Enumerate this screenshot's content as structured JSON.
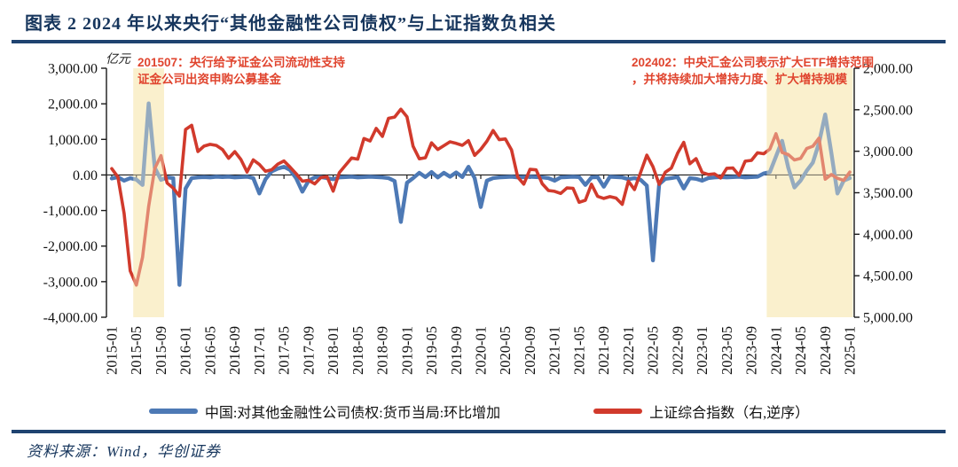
{
  "figure": {
    "title": "图表 2  2024 年以来央行“其他金融性公司债权”与上证指数负相关",
    "source": "资料来源：Wind，华创证券"
  },
  "chart_data": {
    "type": "line",
    "unit_label": "亿元",
    "x_start": "2015-01",
    "x_end": "2025-01",
    "x_tick_labels": [
      "2015-01",
      "2015-05",
      "2015-09",
      "2016-01",
      "2016-05",
      "2016-09",
      "2017-01",
      "2017-05",
      "2017-09",
      "2018-01",
      "2018-05",
      "2018-09",
      "2019-01",
      "2019-05",
      "2019-09",
      "2020-01",
      "2020-05",
      "2020-09",
      "2021-01",
      "2021-05",
      "2021-09",
      "2022-01",
      "2022-05",
      "2022-09",
      "2023-01",
      "2023-05",
      "2023-09",
      "2024-01",
      "2024-05",
      "2024-09",
      "2025-01"
    ],
    "left_axis": {
      "min": -4000,
      "max": 3000,
      "tick_step": 1000
    },
    "right_axis": {
      "min": 2000,
      "max": 5000,
      "tick_step": 500,
      "inverted": true,
      "note": "right axis shown reversed: 2,000.00 at top, 5,000.00 at bottom"
    },
    "grid": "zero-line only",
    "legend_position": "bottom-center",
    "band_color": "#FAF0CE",
    "highlight_bands": [
      {
        "start": "2015-05",
        "end": "2015-09"
      },
      {
        "start": "2023-12",
        "end": "2025-01"
      }
    ],
    "annotations": [
      {
        "line1": "201507：央行给予证金公司流动性支持",
        "line2": "证金公司出资申购公募基金"
      },
      {
        "line1": "202402：中央汇金公司表示扩大ETF增持范围",
        "line2": "，并将持续加大增持力度、扩大增持规模"
      }
    ],
    "series": [
      {
        "name": "中国:对其他金融性公司债权:货币当局:环比增加",
        "axis": "left",
        "color": "#4D79B5",
        "values": [
          -100,
          -60,
          -160,
          -90,
          -130,
          -280,
          2010,
          200,
          -140,
          -70,
          -90,
          -3090,
          -380,
          -90,
          -70,
          -60,
          -70,
          -50,
          -60,
          -50,
          -70,
          -60,
          -50,
          -90,
          -520,
          -120,
          100,
          180,
          230,
          140,
          -100,
          -470,
          -160,
          -70,
          -60,
          -90,
          -120,
          -70,
          -60,
          -50,
          -70,
          -60,
          -50,
          -60,
          -70,
          -90,
          -170,
          -1320,
          -220,
          -90,
          60,
          -60,
          80,
          -70,
          60,
          -50,
          70,
          -60,
          230,
          -90,
          -900,
          -160,
          -90,
          -70,
          -60,
          -50,
          -70,
          -60,
          -50,
          -60,
          -70,
          -90,
          -160,
          -70,
          -60,
          -50,
          -60,
          -280,
          -70,
          -60,
          -330,
          -50,
          -60,
          -70,
          -120,
          -90,
          -140,
          -300,
          -2400,
          -260,
          -110,
          -90,
          -60,
          -380,
          -90,
          -110,
          -160,
          -90,
          -70,
          -60,
          -70,
          -60,
          -50,
          -70,
          -60,
          -50,
          40,
          80,
          520,
          960,
          200,
          -350,
          -160,
          120,
          350,
          900,
          1700,
          620,
          -520,
          -160,
          -90
        ]
      },
      {
        "name": "上证综合指数（右,逆序）",
        "axis": "right",
        "color": "#D13A2C",
        "values": [
          3210,
          3310,
          3748,
          4442,
          4612,
          4277,
          3664,
          3206,
          3053,
          3383,
          3445,
          3539,
          2738,
          2688,
          3004,
          2938,
          2917,
          2930,
          2979,
          3085,
          3005,
          3100,
          3250,
          3104,
          3159,
          3242,
          3223,
          3155,
          3117,
          3192,
          3273,
          3361,
          3349,
          3393,
          3317,
          3307,
          3481,
          3259,
          3169,
          3082,
          3095,
          2847,
          2876,
          2725,
          2821,
          2603,
          2588,
          2494,
          2585,
          2941,
          3091,
          3078,
          2899,
          2979,
          2933,
          2886,
          2905,
          2929,
          2872,
          3050,
          2977,
          2880,
          2750,
          2860,
          2852,
          2985,
          3310,
          3396,
          3218,
          3225,
          3392,
          3473,
          3483,
          3509,
          3442,
          3447,
          3615,
          3591,
          3397,
          3544,
          3568,
          3547,
          3564,
          3640,
          3361,
          3462,
          3252,
          3047,
          3186,
          3399,
          3253,
          3202,
          3024,
          2893,
          3151,
          3089,
          3256,
          3280,
          3273,
          3323,
          3205,
          3202,
          3291,
          3120,
          3110,
          3019,
          3030,
          2975,
          2789,
          3015,
          3041,
          3105,
          3087,
          2967,
          2939,
          2842,
          3337,
          3280,
          3326,
          3352,
          3251
        ]
      }
    ]
  },
  "legend": {
    "items": [
      {
        "label": "中国:对其他金融性公司债权:货币当局:环比增加",
        "color": "#4D79B5"
      },
      {
        "label": "上证综合指数（右,逆序）",
        "color": "#D13A2C"
      }
    ]
  }
}
